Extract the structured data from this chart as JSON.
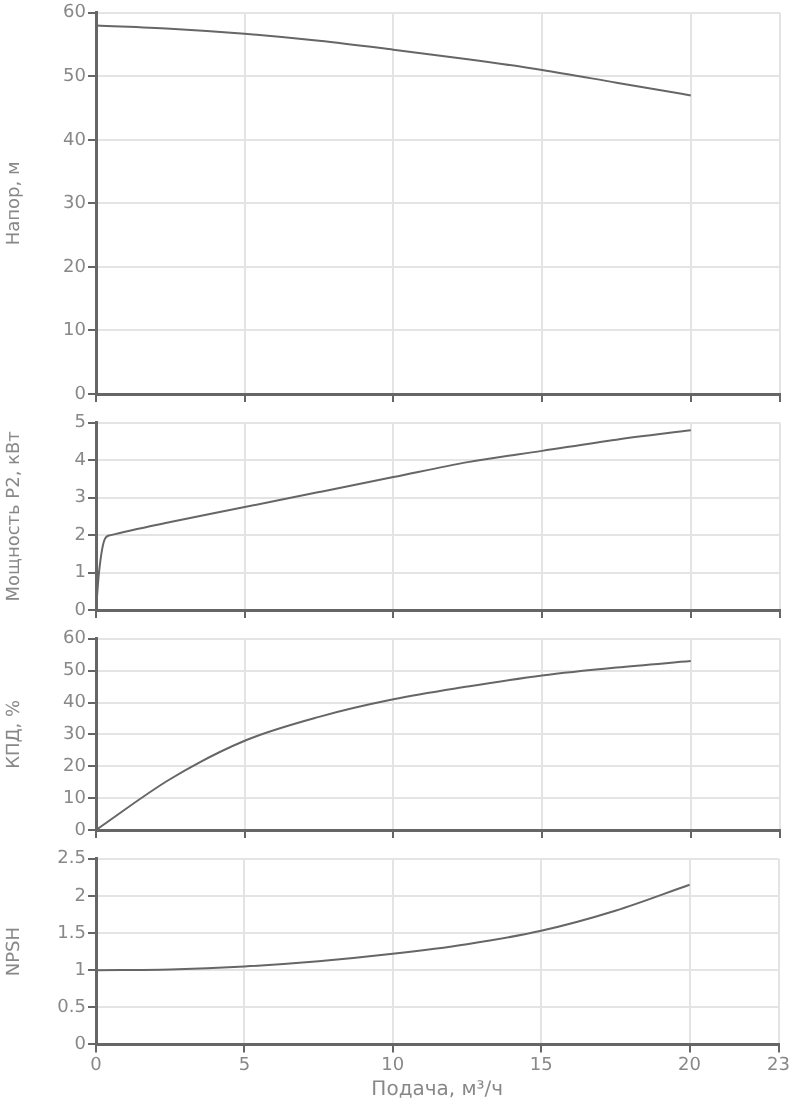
{
  "chart_data": [
    {
      "type": "line",
      "ylabel": "Напор, м",
      "xlim": [
        0,
        23
      ],
      "xticks": [
        0,
        5,
        10,
        15,
        20,
        23
      ],
      "ylim": [
        0,
        60
      ],
      "yticks": [
        0,
        10,
        20,
        30,
        40,
        50,
        60
      ],
      "grid": true,
      "tick_labels": "y",
      "marker": "none",
      "series": [
        {
          "color": "#666666",
          "x": [
            0,
            2.5,
            5,
            7.5,
            10,
            12.5,
            15,
            17.5,
            20
          ],
          "values": [
            58,
            57.5,
            56.7,
            55.6,
            54.2,
            52.7,
            51,
            49,
            47
          ]
        }
      ]
    },
    {
      "type": "line",
      "ylabel": "Мощность P2, кВт",
      "xlim": [
        0,
        23
      ],
      "xticks": [
        0,
        5,
        10,
        15,
        20,
        23
      ],
      "ylim": [
        0,
        5
      ],
      "yticks": [
        0,
        1,
        2,
        3,
        4,
        5
      ],
      "grid": true,
      "tick_labels": "y",
      "marker": "none",
      "series": [
        {
          "color": "#666666",
          "x": [
            0,
            0.1,
            0.3,
            0.5,
            2.5,
            5,
            7.5,
            10,
            12.5,
            15,
            17.5,
            20
          ],
          "values": [
            0,
            1,
            1.9,
            2,
            2.35,
            2.75,
            3.15,
            3.55,
            3.95,
            4.25,
            4.55,
            4.8
          ]
        }
      ]
    },
    {
      "type": "line",
      "ylabel": "КПД, %",
      "xlim": [
        0,
        23
      ],
      "xticks": [
        0,
        5,
        10,
        15,
        20,
        23
      ],
      "ylim": [
        0,
        60
      ],
      "yticks": [
        0,
        10,
        20,
        30,
        40,
        50,
        60
      ],
      "grid": true,
      "tick_labels": "y",
      "marker": "none",
      "series": [
        {
          "color": "#666666",
          "x": [
            0,
            2.5,
            5,
            7.5,
            10,
            12.5,
            15,
            17.5,
            20
          ],
          "values": [
            0,
            16,
            28,
            35.5,
            41,
            45,
            48.5,
            51,
            53
          ]
        }
      ]
    },
    {
      "type": "line",
      "xlabel": "Подача, м³/ч",
      "ylabel": "NPSH",
      "xlim": [
        0,
        23
      ],
      "xticks": [
        0,
        5,
        10,
        15,
        20,
        23
      ],
      "ylim": [
        0,
        2.5
      ],
      "yticks": [
        0,
        0.5,
        1,
        1.5,
        2,
        2.5
      ],
      "grid": true,
      "marker": "none",
      "series": [
        {
          "color": "#666666",
          "x": [
            0,
            2.5,
            5,
            7.5,
            10,
            12.5,
            15,
            17.5,
            20
          ],
          "values": [
            1,
            1.01,
            1.05,
            1.12,
            1.22,
            1.35,
            1.53,
            1.8,
            2.15
          ]
        }
      ]
    }
  ]
}
